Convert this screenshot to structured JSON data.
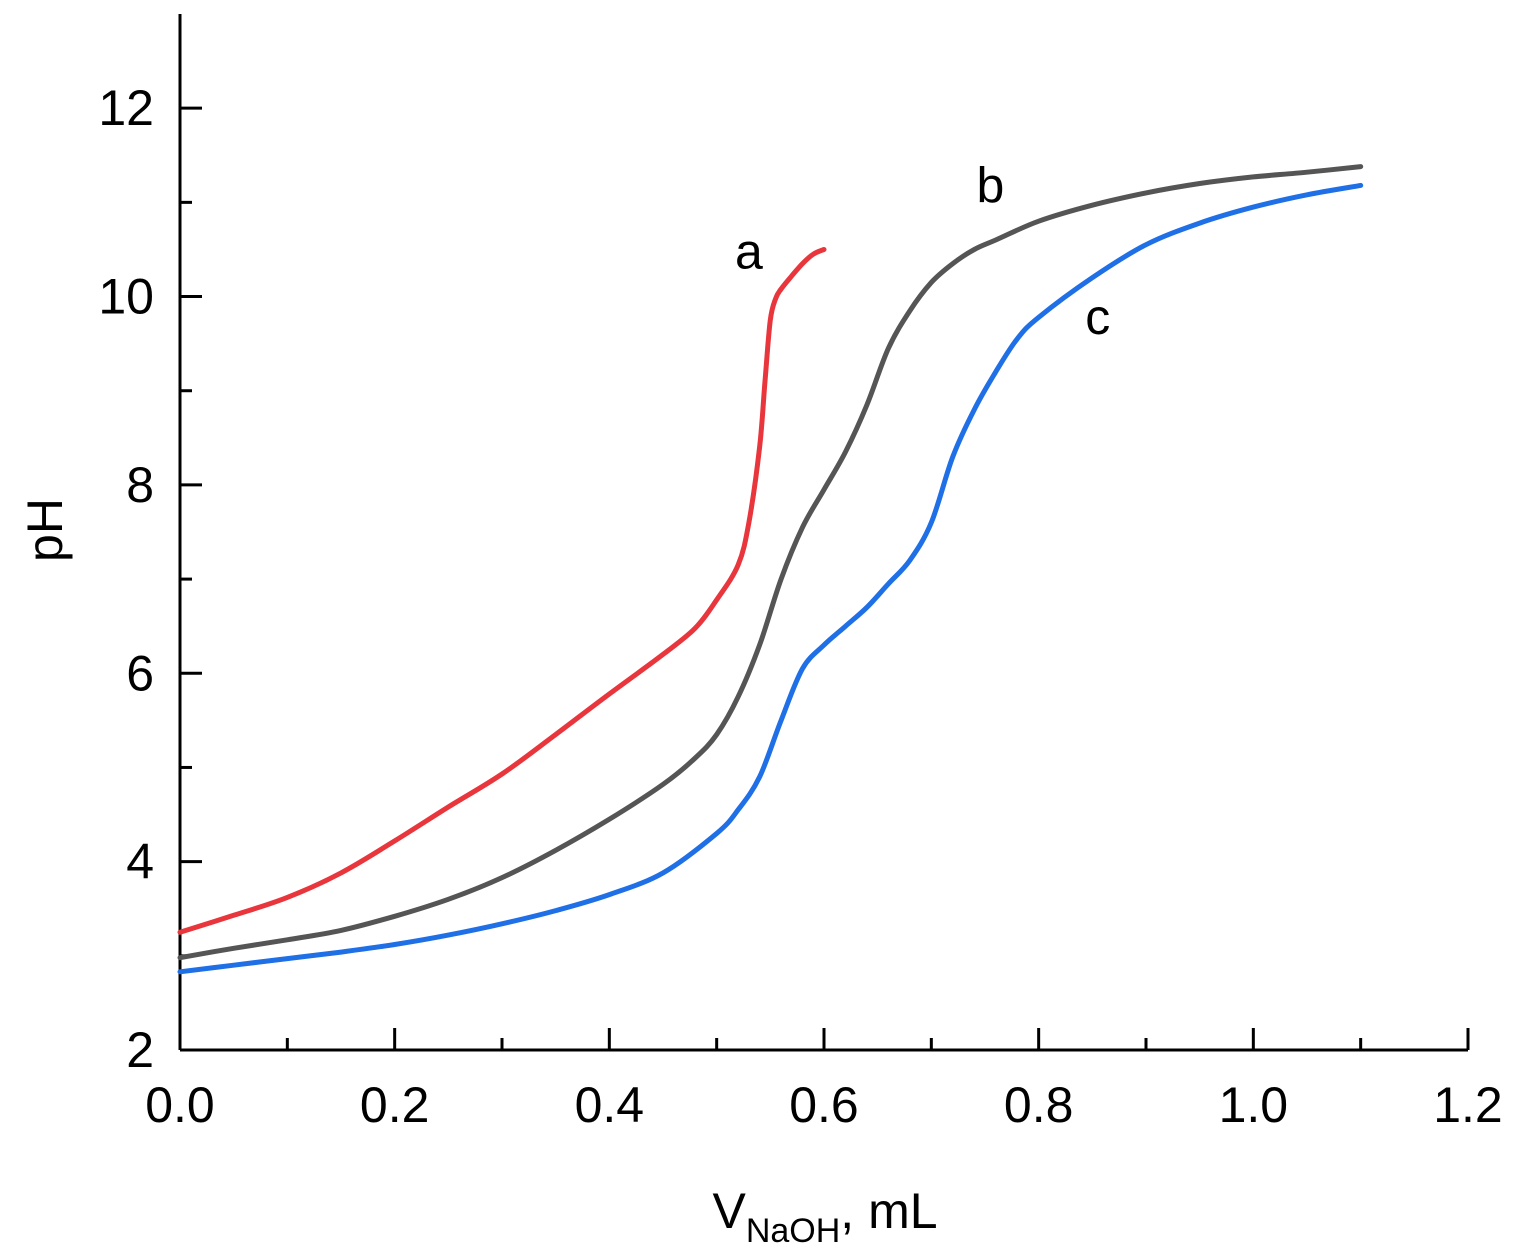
{
  "chart_data": {
    "type": "line",
    "title": "",
    "xlabel_main": "V",
    "xlabel_sub": "NaOH",
    "xlabel_unit": ", mL",
    "ylabel": "pH",
    "xlim": [
      0.0,
      1.2
    ],
    "ylim": [
      2,
      13
    ],
    "x_ticks": [
      0.0,
      0.2,
      0.4,
      0.6,
      0.8,
      1.0,
      1.2
    ],
    "x_tick_labels": [
      "0.0",
      "0.2",
      "0.4",
      "0.6",
      "0.8",
      "1.0",
      "1.2"
    ],
    "x_minor_ticks": [
      0.1,
      0.3,
      0.5,
      0.7,
      0.9,
      1.1
    ],
    "y_ticks": [
      2,
      4,
      6,
      8,
      10,
      12
    ],
    "y_tick_labels": [
      "2",
      "4",
      "6",
      "8",
      "10",
      "12"
    ],
    "y_minor_ticks": [
      3,
      5,
      7,
      9,
      11
    ],
    "grid": false,
    "series": [
      {
        "name": "a",
        "color": "#e8363c",
        "label_at": [
          0.53,
          10.3
        ],
        "x": [
          0.0,
          0.05,
          0.1,
          0.15,
          0.2,
          0.25,
          0.3,
          0.35,
          0.4,
          0.45,
          0.48,
          0.5,
          0.52,
          0.53,
          0.54,
          0.545,
          0.55,
          0.555,
          0.56,
          0.57,
          0.58,
          0.59,
          0.6
        ],
        "y": [
          3.25,
          3.43,
          3.62,
          3.88,
          4.22,
          4.58,
          4.93,
          5.35,
          5.78,
          6.2,
          6.48,
          6.78,
          7.15,
          7.6,
          8.4,
          9.1,
          9.75,
          9.98,
          10.08,
          10.22,
          10.35,
          10.45,
          10.5
        ]
      },
      {
        "name": "b",
        "color": "#555555",
        "label_at": [
          0.755,
          11.0
        ],
        "x": [
          0.0,
          0.05,
          0.1,
          0.15,
          0.2,
          0.25,
          0.3,
          0.35,
          0.4,
          0.45,
          0.48,
          0.5,
          0.52,
          0.54,
          0.56,
          0.58,
          0.6,
          0.62,
          0.64,
          0.66,
          0.68,
          0.7,
          0.72,
          0.74,
          0.76,
          0.8,
          0.85,
          0.9,
          0.95,
          1.0,
          1.05,
          1.1
        ],
        "y": [
          2.98,
          3.08,
          3.17,
          3.27,
          3.42,
          3.6,
          3.83,
          4.12,
          4.45,
          4.82,
          5.1,
          5.35,
          5.75,
          6.3,
          7.0,
          7.55,
          7.95,
          8.35,
          8.85,
          9.45,
          9.85,
          10.15,
          10.35,
          10.5,
          10.6,
          10.8,
          10.97,
          11.1,
          11.2,
          11.27,
          11.32,
          11.38
        ]
      },
      {
        "name": "c",
        "color": "#1f6fe6",
        "label_at": [
          0.855,
          9.6
        ],
        "x": [
          0.0,
          0.05,
          0.1,
          0.15,
          0.2,
          0.25,
          0.3,
          0.35,
          0.4,
          0.45,
          0.5,
          0.52,
          0.54,
          0.56,
          0.58,
          0.6,
          0.62,
          0.64,
          0.66,
          0.68,
          0.7,
          0.72,
          0.74,
          0.76,
          0.78,
          0.8,
          0.85,
          0.9,
          0.95,
          1.0,
          1.05,
          1.1
        ],
        "y": [
          2.83,
          2.9,
          2.97,
          3.04,
          3.12,
          3.22,
          3.34,
          3.48,
          3.65,
          3.88,
          4.3,
          4.55,
          4.9,
          5.5,
          6.05,
          6.3,
          6.5,
          6.7,
          6.95,
          7.2,
          7.6,
          8.3,
          8.8,
          9.2,
          9.55,
          9.78,
          10.2,
          10.55,
          10.78,
          10.95,
          11.08,
          11.18
        ]
      }
    ]
  }
}
